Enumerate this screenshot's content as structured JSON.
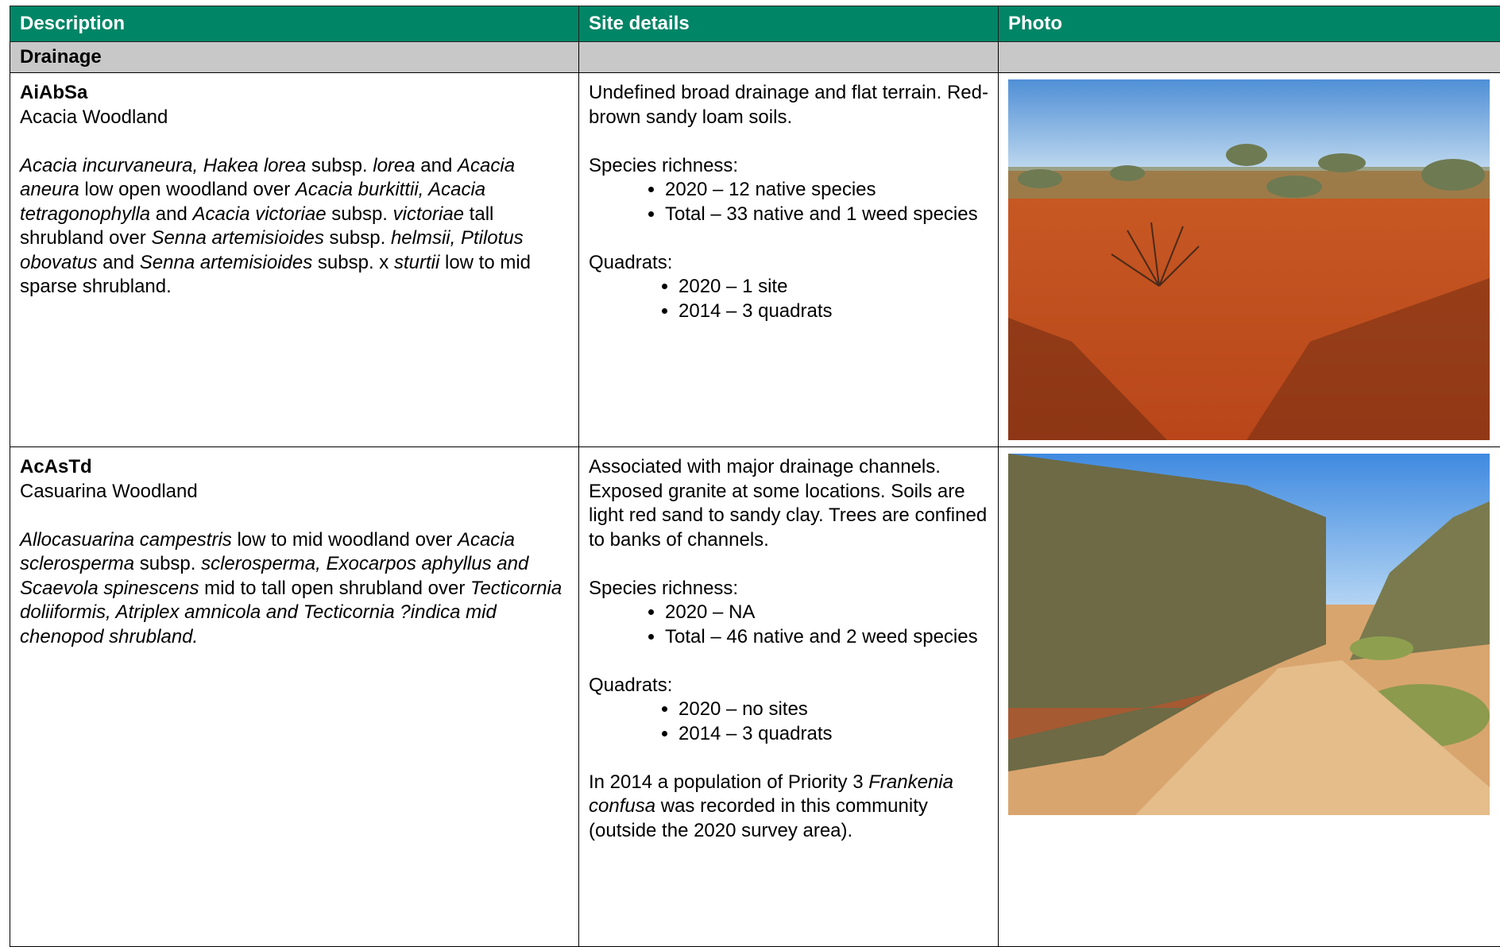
{
  "table": {
    "headers": [
      "Description",
      "Site details",
      "Photo"
    ],
    "section": "Drainage",
    "rows": [
      {
        "code": "AiAbSa",
        "name": "Acacia Woodland",
        "description": [
          {
            "text": "Acacia incurvaneura, Hakea lorea",
            "italic": true
          },
          {
            "text": " subsp. "
          },
          {
            "text": "lorea",
            "italic": true
          },
          {
            "text": " and "
          },
          {
            "text": "Acacia aneura",
            "italic": true
          },
          {
            "text": " low open woodland over "
          },
          {
            "text": "Acacia burkittii, Acacia tetragonophylla",
            "italic": true
          },
          {
            "text": " and "
          },
          {
            "text": "Acacia victoriae",
            "italic": true
          },
          {
            "text": " subsp. "
          },
          {
            "text": "victoriae",
            "italic": true
          },
          {
            "text": " tall shrubland over "
          },
          {
            "text": "Senna artemisioides",
            "italic": true
          },
          {
            "text": " subsp. "
          },
          {
            "text": "helmsii, Ptilotus obovatus",
            "italic": true
          },
          {
            "text": " and "
          },
          {
            "text": "Senna artemisioides",
            "italic": true
          },
          {
            "text": " subsp. x "
          },
          {
            "text": "sturtii",
            "italic": true
          },
          {
            "text": " low to mid sparse shrubland."
          }
        ],
        "site_details": {
          "intro": "Undefined broad drainage and flat terrain. Red-brown sandy loam soils.",
          "richness_label": "Species richness:",
          "richness": [
            "2020 – 12 native species",
            "Total – 33 native and 1 weed species"
          ],
          "quadrats_label": "Quadrats:",
          "quadrats": [
            "2020 – 1 site",
            "2014 – 3 quadrats"
          ]
        }
      },
      {
        "code": "AcAsTd",
        "name": "Casuarina Woodland",
        "description": [
          {
            "text": "Allocasuarina campestris",
            "italic": true
          },
          {
            "text": " low to mid woodland over "
          },
          {
            "text": "Acacia sclerosperma",
            "italic": true
          },
          {
            "text": " subsp. "
          },
          {
            "text": "sclerosperma, Exocarpos aphyllus and Scaevola spinescens",
            "italic": true
          },
          {
            "text": " mid to tall open shrubland over "
          },
          {
            "text": "Tecticornia doliiformis, Atriplex amnicola and Tecticornia ?indica mid chenopod shrubland.",
            "italic": true
          }
        ],
        "site_details": {
          "intro": "Associated with major drainage channels. Exposed granite at some locations. Soils are light red sand to sandy clay. Trees are confined to banks of channels.",
          "richness_label": "Species richness:",
          "richness": [
            "2020 – NA",
            "Total – 46 native and 2 weed species"
          ],
          "quadrats_label": "Quadrats:",
          "quadrats": [
            "2020 – no sites",
            "2014 – 3 quadrats"
          ],
          "note": [
            {
              "text": "In 2014 a population of Priority 3 "
            },
            {
              "text": "Frankenia confusa",
              "italic": true
            },
            {
              "text": " was recorded in this community (outside the 2020 survey area)."
            }
          ]
        }
      }
    ]
  }
}
